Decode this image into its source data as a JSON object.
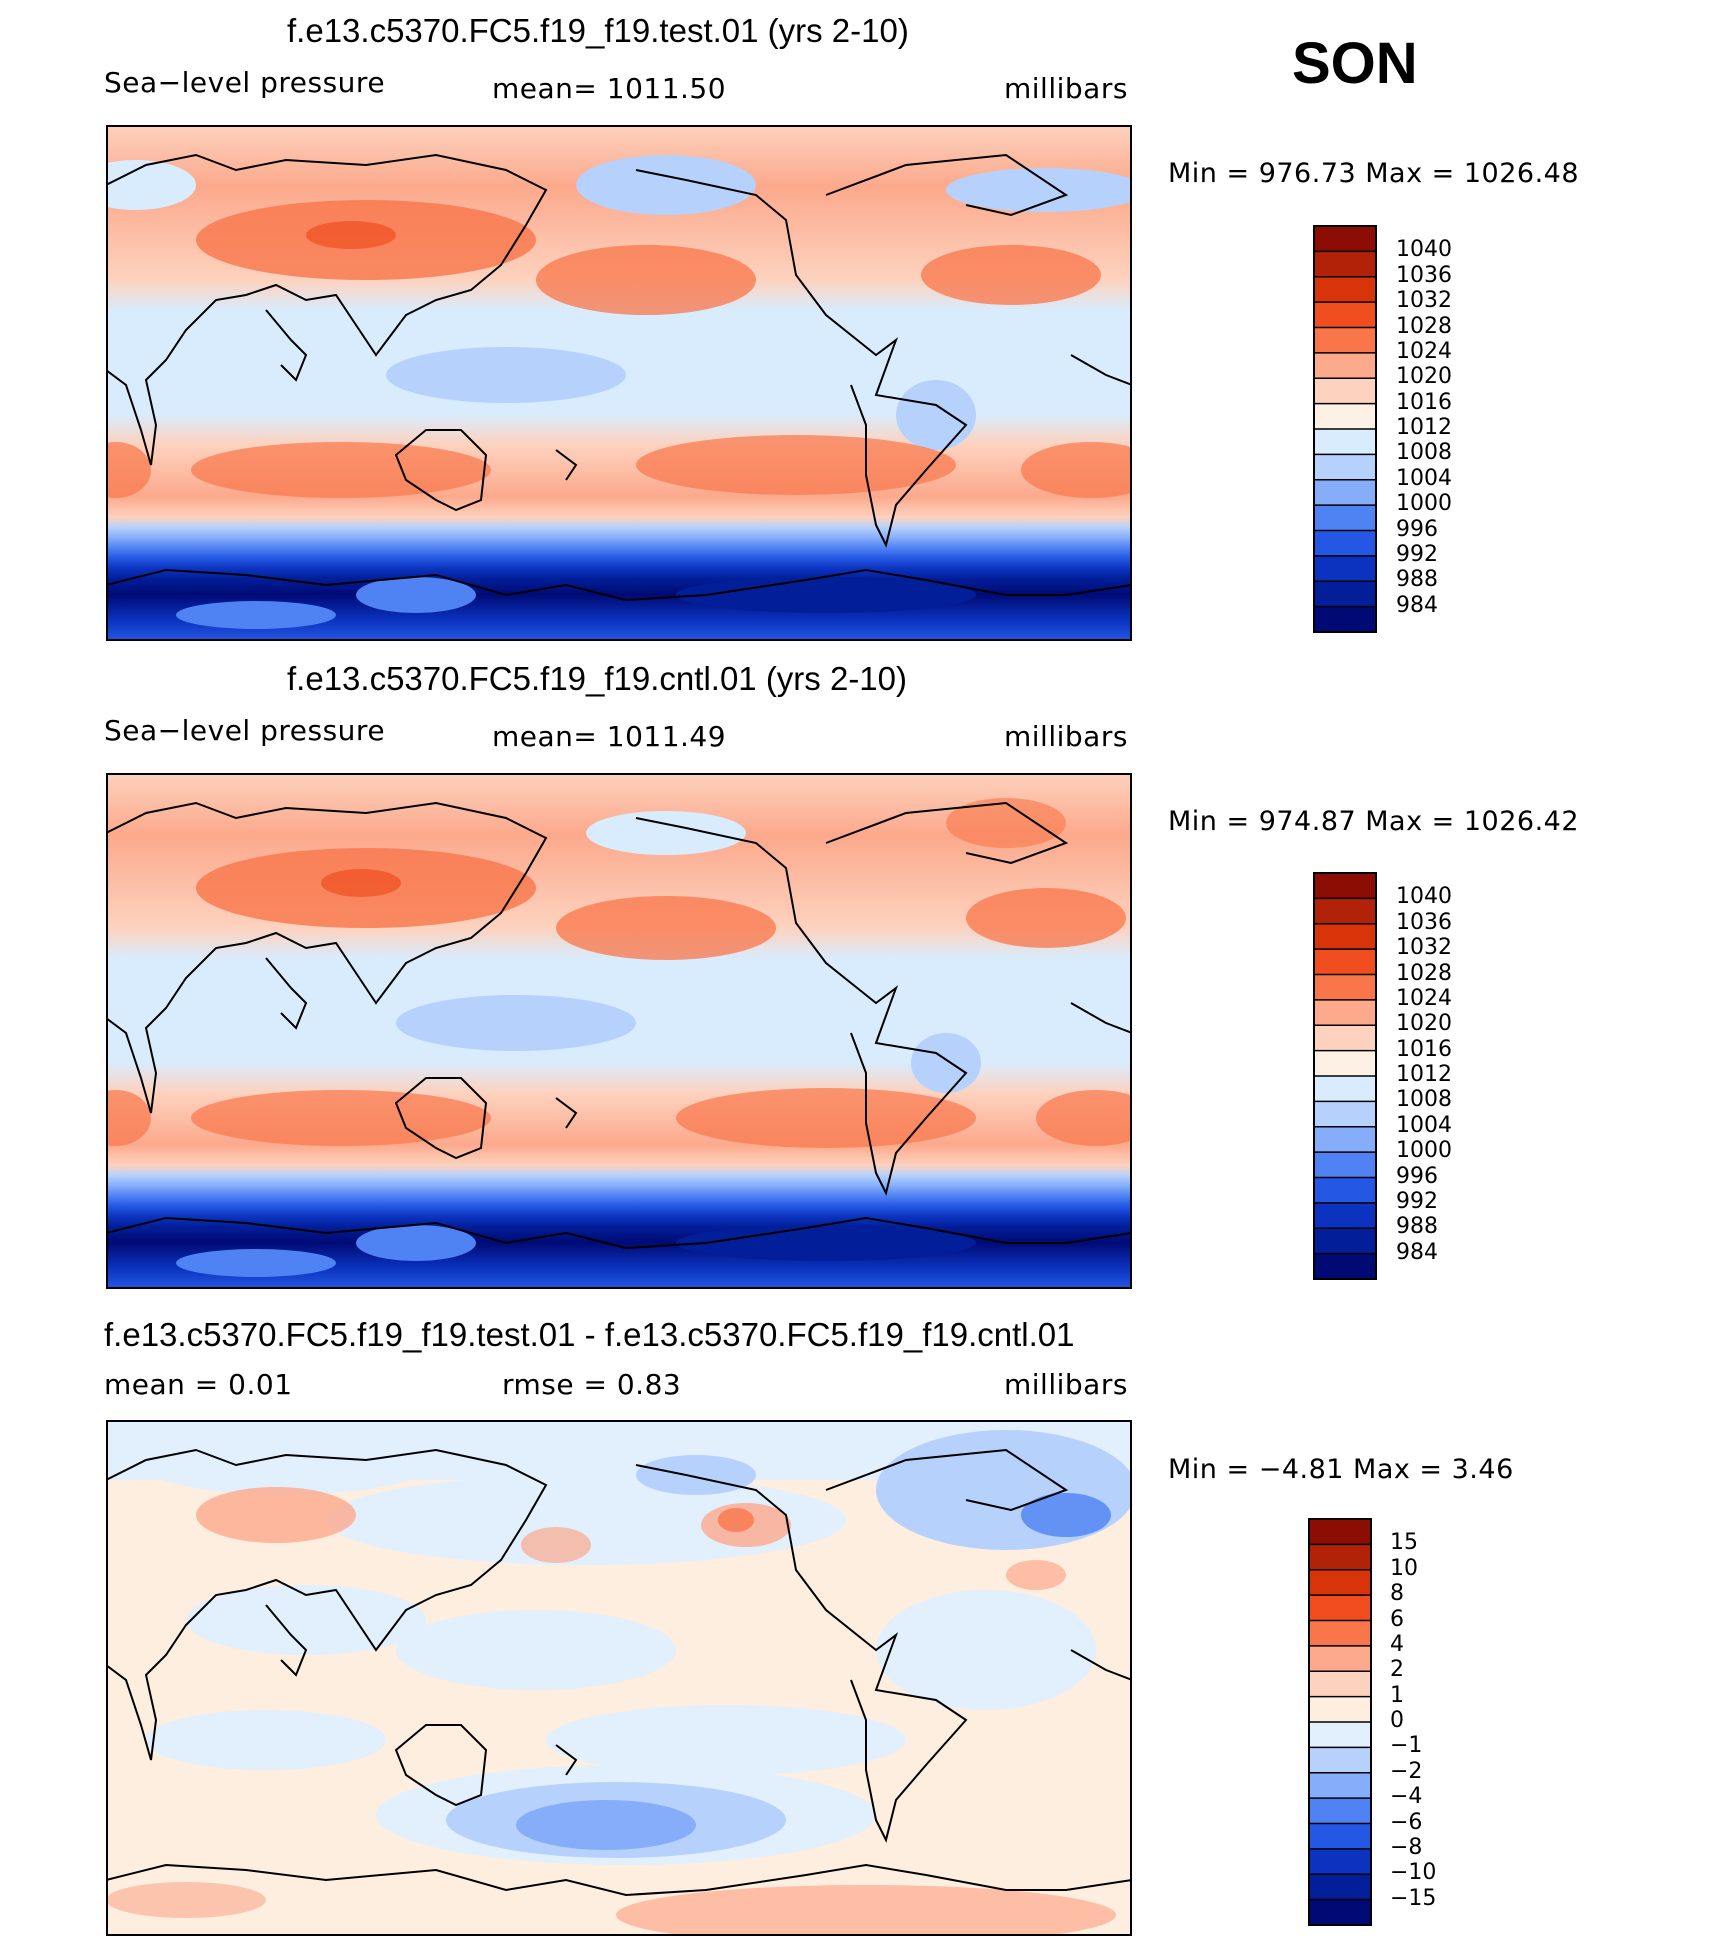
{
  "season": "SON",
  "panels": [
    {
      "id": "test",
      "title": "f.e13.c5370.FC5.f19_f19.test.01 (yrs 2-10)",
      "left_label": "Sea−level pressure",
      "center_label": "mean=  1011.50",
      "right_label": "millibars",
      "minmax": "Min  =  976.73  Max  =  1026.48",
      "colorbar_levels": [
        "1040",
        "1036",
        "1032",
        "1028",
        "1024",
        "1020",
        "1016",
        "1012",
        "1008",
        "1004",
        "1000",
        "996",
        "992",
        "988",
        "984"
      ],
      "colorbar_colors": [
        "#8b0d04",
        "#b22208",
        "#d83409",
        "#f04e1f",
        "#f8764a",
        "#fca98c",
        "#fdd2be",
        "#fdf1e6",
        "#d9ecfd",
        "#b6d1fc",
        "#86adf9",
        "#4f82f3",
        "#2457e3",
        "#0b33bf",
        "#021e98",
        "#000a74"
      ]
    },
    {
      "id": "cntl",
      "title": "f.e13.c5370.FC5.f19_f19.cntl.01 (yrs 2-10)",
      "left_label": "Sea−level pressure",
      "center_label": "mean=  1011.49",
      "right_label": "millibars",
      "minmax": "Min  =  974.87  Max  =  1026.42",
      "colorbar_levels": [
        "1040",
        "1036",
        "1032",
        "1028",
        "1024",
        "1020",
        "1016",
        "1012",
        "1008",
        "1004",
        "1000",
        "996",
        "992",
        "988",
        "984"
      ],
      "colorbar_colors": [
        "#8b0d04",
        "#b22208",
        "#d83409",
        "#f04e1f",
        "#f8764a",
        "#fca98c",
        "#fdd2be",
        "#fdf1e6",
        "#d9ecfd",
        "#b6d1fc",
        "#86adf9",
        "#4f82f3",
        "#2457e3",
        "#0b33bf",
        "#021e98",
        "#000a74"
      ]
    },
    {
      "id": "diff",
      "title": "f.e13.c5370.FC5.f19_f19.test.01 - f.e13.c5370.FC5.f19_f19.cntl.01",
      "left_label": "mean =     0.01",
      "center_label": "rmse =     0.83",
      "right_label": "millibars",
      "minmax": "Min  =   −4.81  Max  =      3.46",
      "colorbar_levels": [
        "15",
        "10",
        "8",
        "6",
        "4",
        "2",
        "1",
        "0",
        "−1",
        "−2",
        "−4",
        "−6",
        "−8",
        "−10",
        "−15"
      ],
      "colorbar_colors": [
        "#8b0d04",
        "#b22208",
        "#d83409",
        "#f04e1f",
        "#f8764a",
        "#fca98c",
        "#fdd2be",
        "#fdeedf",
        "#e2effd",
        "#b6d1fc",
        "#86adf9",
        "#4f82f3",
        "#2457e3",
        "#0b33bf",
        "#021e98",
        "#000a74"
      ]
    }
  ]
}
